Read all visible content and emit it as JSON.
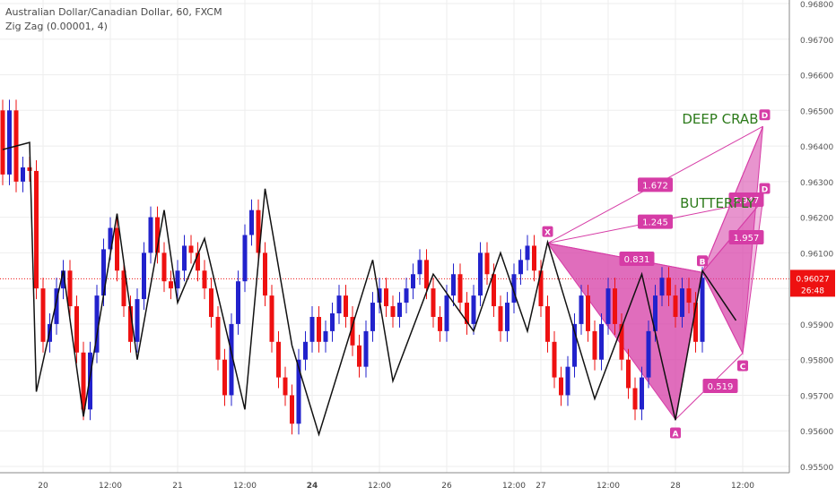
{
  "header": {
    "symbol_line": "Australian Dollar/Canadian Dollar, 60, FXCM",
    "indicator_line": "Zig Zag (0.00001, 4)"
  },
  "price_badge": {
    "price": "0.96027",
    "countdown": "26:48"
  },
  "colors": {
    "up": "#2222cc",
    "down": "#ee1111",
    "zigzag": "#111111",
    "pattern": "#d63ca6",
    "pattern_fill": "#d63ca6",
    "crab_label": "#2c7a1a",
    "grid": "#eeeeee",
    "current": "#ee1111"
  },
  "chart_data": {
    "type": "candlestick",
    "title": "Australian Dollar/Canadian Dollar, 60, FXCM",
    "ylim": [
      0.955,
      0.968
    ],
    "y_ticks": [
      "0.96800",
      "0.96700",
      "0.96600",
      "0.96500",
      "0.96400",
      "0.96300",
      "0.96200",
      "0.96100",
      "0.96000",
      "0.95900",
      "0.95800",
      "0.95700",
      "0.95600",
      "0.95500"
    ],
    "x_ticks": [
      {
        "label": "20",
        "bold": false,
        "i": 6
      },
      {
        "label": "12:00",
        "bold": false,
        "i": 16
      },
      {
        "label": "21",
        "bold": false,
        "i": 26
      },
      {
        "label": "12:00",
        "bold": false,
        "i": 36
      },
      {
        "label": "24",
        "bold": true,
        "i": 46
      },
      {
        "label": "12:00",
        "bold": false,
        "i": 56
      },
      {
        "label": "26",
        "bold": false,
        "i": 66
      },
      {
        "label": "12:00",
        "bold": false,
        "i": 76
      },
      {
        "label": "27",
        "bold": false,
        "i": 80
      },
      {
        "label": "12:00",
        "bold": false,
        "i": 90
      },
      {
        "label": "28",
        "bold": false,
        "i": 100
      },
      {
        "label": "12:00",
        "bold": false,
        "i": 110
      }
    ],
    "current_price": 0.96027,
    "zigzag": [
      [
        0,
        0.9639
      ],
      [
        4,
        0.9641
      ],
      [
        5,
        0.9571
      ],
      [
        9,
        0.9605
      ],
      [
        12,
        0.9564
      ],
      [
        17,
        0.9621
      ],
      [
        20,
        0.958
      ],
      [
        24,
        0.9622
      ],
      [
        26,
        0.9596
      ],
      [
        30,
        0.9614
      ],
      [
        36,
        0.9566
      ],
      [
        39,
        0.9628
      ],
      [
        43,
        0.9584
      ],
      [
        47,
        0.9559
      ],
      [
        55,
        0.9608
      ],
      [
        58,
        0.9574
      ],
      [
        64,
        0.9604
      ],
      [
        70,
        0.9588
      ],
      [
        74,
        0.961
      ],
      [
        78,
        0.9588
      ],
      [
        81,
        0.9613
      ],
      [
        88,
        0.9569
      ],
      [
        95,
        0.9604
      ],
      [
        100,
        0.9563
      ],
      [
        104,
        0.9605
      ],
      [
        109,
        0.9591
      ]
    ],
    "patterns": [
      {
        "name": "DEEP CRAB",
        "points": {
          "X": [
            81,
            0.96127
          ],
          "A": [
            100,
            0.95632
          ],
          "B": [
            104,
            0.96045
          ],
          "C": [
            110,
            0.95818
          ],
          "D": [
            113,
            0.96455
          ]
        },
        "ratios": [
          "1.672",
          "0.831",
          "0.519",
          "2.947"
        ]
      },
      {
        "name": "BUTTERFLY",
        "points": {
          "D": [
            113,
            0.96248
          ]
        },
        "ratios": [
          "1.245",
          "1.957"
        ]
      }
    ],
    "candles": [
      {
        "o": 0.965,
        "c": 0.9632
      },
      {
        "o": 0.9632,
        "c": 0.965
      },
      {
        "o": 0.965,
        "c": 0.963
      },
      {
        "o": 0.963,
        "c": 0.9634
      },
      {
        "o": 0.9634,
        "c": 0.9633
      },
      {
        "o": 0.9633,
        "c": 0.96
      },
      {
        "o": 0.96,
        "c": 0.9585
      },
      {
        "o": 0.9585,
        "c": 0.959
      },
      {
        "o": 0.959,
        "c": 0.96
      },
      {
        "o": 0.96,
        "c": 0.9605
      },
      {
        "o": 0.9605,
        "c": 0.9595
      },
      {
        "o": 0.9595,
        "c": 0.9582
      },
      {
        "o": 0.9582,
        "c": 0.9566
      },
      {
        "o": 0.9566,
        "c": 0.9582
      },
      {
        "o": 0.9582,
        "c": 0.9598
      },
      {
        "o": 0.9598,
        "c": 0.9611
      },
      {
        "o": 0.9611,
        "c": 0.9617
      },
      {
        "o": 0.9617,
        "c": 0.9605
      },
      {
        "o": 0.9605,
        "c": 0.9595
      },
      {
        "o": 0.9595,
        "c": 0.9585
      },
      {
        "o": 0.9585,
        "c": 0.9597
      },
      {
        "o": 0.9597,
        "c": 0.961
      },
      {
        "o": 0.961,
        "c": 0.962
      },
      {
        "o": 0.962,
        "c": 0.961
      },
      {
        "o": 0.961,
        "c": 0.9602
      },
      {
        "o": 0.9602,
        "c": 0.96
      },
      {
        "o": 0.96,
        "c": 0.9605
      },
      {
        "o": 0.9605,
        "c": 0.9612
      },
      {
        "o": 0.9612,
        "c": 0.961
      },
      {
        "o": 0.961,
        "c": 0.9605
      },
      {
        "o": 0.9605,
        "c": 0.96
      },
      {
        "o": 0.96,
        "c": 0.9592
      },
      {
        "o": 0.9592,
        "c": 0.958
      },
      {
        "o": 0.958,
        "c": 0.957
      },
      {
        "o": 0.957,
        "c": 0.959
      },
      {
        "o": 0.959,
        "c": 0.9602
      },
      {
        "o": 0.9602,
        "c": 0.9615
      },
      {
        "o": 0.9615,
        "c": 0.9622
      },
      {
        "o": 0.9622,
        "c": 0.961
      },
      {
        "o": 0.961,
        "c": 0.9598
      },
      {
        "o": 0.9598,
        "c": 0.9585
      },
      {
        "o": 0.9585,
        "c": 0.9575
      },
      {
        "o": 0.9575,
        "c": 0.957
      },
      {
        "o": 0.957,
        "c": 0.9562
      },
      {
        "o": 0.9562,
        "c": 0.958
      },
      {
        "o": 0.958,
        "c": 0.9585
      },
      {
        "o": 0.9585,
        "c": 0.9592
      },
      {
        "o": 0.9592,
        "c": 0.9585
      },
      {
        "o": 0.9585,
        "c": 0.9588
      },
      {
        "o": 0.9588,
        "c": 0.9593
      },
      {
        "o": 0.9593,
        "c": 0.9598
      },
      {
        "o": 0.9598,
        "c": 0.9592
      },
      {
        "o": 0.9592,
        "c": 0.9584
      },
      {
        "o": 0.9584,
        "c": 0.9578
      },
      {
        "o": 0.9578,
        "c": 0.9588
      },
      {
        "o": 0.9588,
        "c": 0.9596
      },
      {
        "o": 0.9596,
        "c": 0.96
      },
      {
        "o": 0.96,
        "c": 0.9595
      },
      {
        "o": 0.9595,
        "c": 0.9592
      },
      {
        "o": 0.9592,
        "c": 0.9596
      },
      {
        "o": 0.9596,
        "c": 0.96
      },
      {
        "o": 0.96,
        "c": 0.9604
      },
      {
        "o": 0.9604,
        "c": 0.9608
      },
      {
        "o": 0.9608,
        "c": 0.96
      },
      {
        "o": 0.96,
        "c": 0.9592
      },
      {
        "o": 0.9592,
        "c": 0.9588
      },
      {
        "o": 0.9588,
        "c": 0.9598
      },
      {
        "o": 0.9598,
        "c": 0.9604
      },
      {
        "o": 0.9604,
        "c": 0.9596
      },
      {
        "o": 0.9596,
        "c": 0.959
      },
      {
        "o": 0.959,
        "c": 0.9598
      },
      {
        "o": 0.9598,
        "c": 0.961
      },
      {
        "o": 0.961,
        "c": 0.9604
      },
      {
        "o": 0.9604,
        "c": 0.9595
      },
      {
        "o": 0.9595,
        "c": 0.9588
      },
      {
        "o": 0.9588,
        "c": 0.9596
      },
      {
        "o": 0.9596,
        "c": 0.9604
      },
      {
        "o": 0.9604,
        "c": 0.9608
      },
      {
        "o": 0.9608,
        "c": 0.9612
      },
      {
        "o": 0.9612,
        "c": 0.9605
      },
      {
        "o": 0.9605,
        "c": 0.9595
      },
      {
        "o": 0.9595,
        "c": 0.9585
      },
      {
        "o": 0.9585,
        "c": 0.9575
      },
      {
        "o": 0.9575,
        "c": 0.957
      },
      {
        "o": 0.957,
        "c": 0.9578
      },
      {
        "o": 0.9578,
        "c": 0.959
      },
      {
        "o": 0.959,
        "c": 0.9598
      },
      {
        "o": 0.9598,
        "c": 0.9588
      },
      {
        "o": 0.9588,
        "c": 0.958
      },
      {
        "o": 0.958,
        "c": 0.959
      },
      {
        "o": 0.959,
        "c": 0.96
      },
      {
        "o": 0.96,
        "c": 0.959
      },
      {
        "o": 0.959,
        "c": 0.958
      },
      {
        "o": 0.958,
        "c": 0.9572
      },
      {
        "o": 0.9572,
        "c": 0.9566
      },
      {
        "o": 0.9566,
        "c": 0.9575
      },
      {
        "o": 0.9575,
        "c": 0.9588
      },
      {
        "o": 0.9588,
        "c": 0.9598
      },
      {
        "o": 0.9598,
        "c": 0.9603
      },
      {
        "o": 0.9603,
        "c": 0.9598
      },
      {
        "o": 0.9598,
        "c": 0.9592
      },
      {
        "o": 0.9592,
        "c": 0.96
      },
      {
        "o": 0.96,
        "c": 0.9596
      },
      {
        "o": 0.9596,
        "c": 0.9585
      },
      {
        "o": 0.9585,
        "c": 0.9603
      }
    ]
  }
}
